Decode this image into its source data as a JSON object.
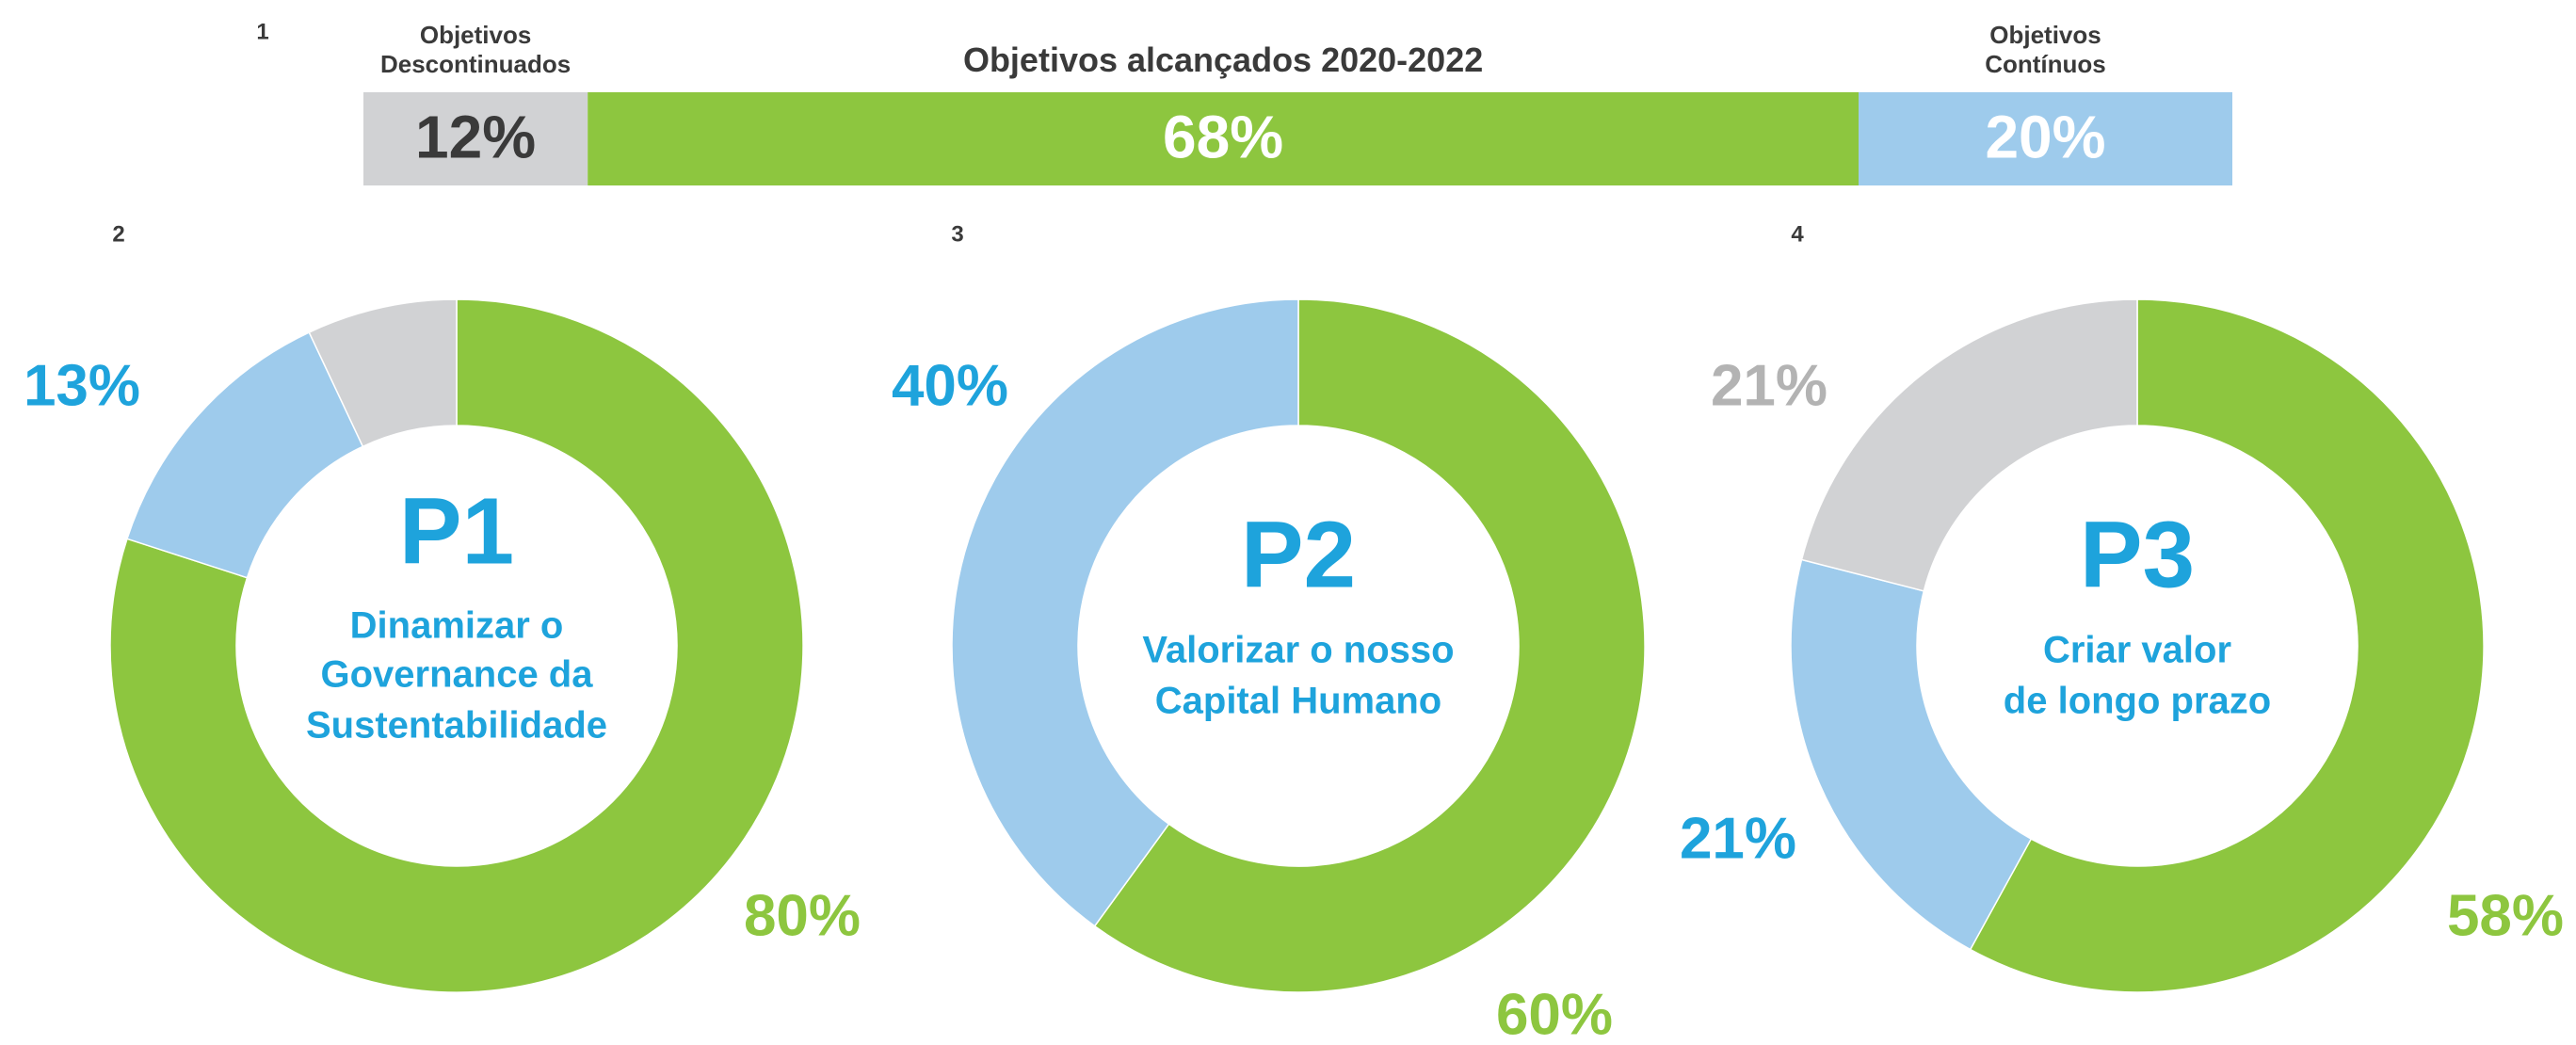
{
  "chart_data": [
    {
      "type": "bar",
      "orientation": "horizontal",
      "stacked": true,
      "number": "1",
      "categories": [
        "Objetivos Descontinuados",
        "Objetivos alcançados 2020-2022",
        "Objetivos Contínuos"
      ],
      "values": [
        12,
        68,
        20
      ],
      "value_labels": [
        "12%",
        "68%",
        "20%"
      ],
      "colors": [
        "#d1d2d4",
        "#8dc63f",
        "#9ecbec"
      ],
      "label_colors": [
        "#3a3a3a",
        "#ffffff",
        "#ffffff"
      ],
      "xlim": [
        0,
        100
      ]
    },
    {
      "type": "pie",
      "donut": true,
      "number": "2",
      "title": "P1",
      "subtitle": [
        "Dinamizar o",
        "Governance da",
        "Sustentabilidade"
      ],
      "values": [
        80,
        13,
        7
      ],
      "value_labels": [
        "80%",
        "13%",
        null
      ],
      "colors": [
        "#8dc63f",
        "#9ecbec",
        "#d1d2d4"
      ],
      "label_colors": [
        "#8dc63f",
        "#1ea3dc",
        "#b3b3b3"
      ]
    },
    {
      "type": "pie",
      "donut": true,
      "number": "3",
      "title": "P2",
      "subtitle": [
        "Valorizar o nosso",
        "Capital Humano"
      ],
      "values": [
        60,
        40
      ],
      "value_labels": [
        "60%",
        "40%"
      ],
      "colors": [
        "#8dc63f",
        "#9ecbec"
      ],
      "label_colors": [
        "#8dc63f",
        "#1ea3dc"
      ]
    },
    {
      "type": "pie",
      "donut": true,
      "number": "4",
      "title": "P3",
      "subtitle": [
        "Criar valor",
        "de longo prazo"
      ],
      "values": [
        58,
        21,
        21
      ],
      "value_labels": [
        "58%",
        "21%",
        "21%"
      ],
      "colors": [
        "#8dc63f",
        "#9ecbec",
        "#d1d2d4"
      ],
      "label_colors": [
        "#8dc63f",
        "#1ea3dc",
        "#b3b3b3"
      ]
    }
  ]
}
